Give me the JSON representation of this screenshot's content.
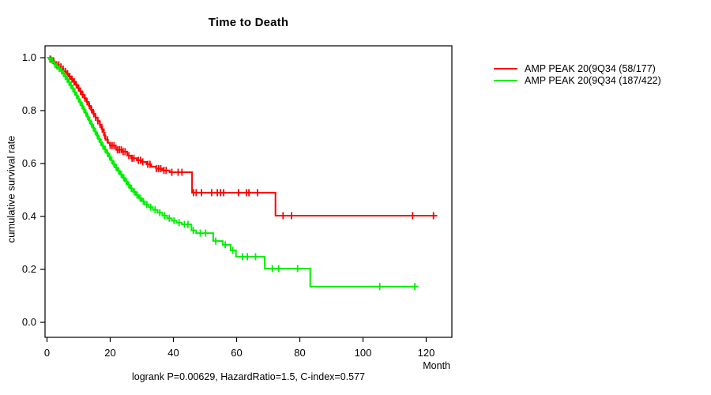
{
  "title": "Time to Death",
  "axes": {
    "x": {
      "label": "Month",
      "tick_values": [
        0,
        20,
        40,
        60,
        80,
        100,
        120
      ],
      "tick_labels": [
        "0",
        "20",
        "40",
        "60",
        "80",
        "100",
        "120"
      ],
      "max_shown": 128
    },
    "y": {
      "label": "cumulative survival rate",
      "tick_values": [
        0.0,
        0.2,
        0.4,
        0.6,
        0.8,
        1.0
      ],
      "tick_labels": [
        "0.0",
        "0.2",
        "0.4",
        "0.6",
        "0.8",
        "1.0"
      ]
    }
  },
  "legend": [
    {
      "label": "AMP PEAK 20(9Q34 (58/177)",
      "color": "#ff0000"
    },
    {
      "label": "AMP PEAK 20(9Q34 (187/422)",
      "color": "#00ee00"
    }
  ],
  "footer": "logrank P=0.00629, HazardRatio=1.5, C-index=0.577",
  "chart_data": {
    "type": "line",
    "subtype": "kaplan-meier-step",
    "title": "Time to Death",
    "xlabel": "Month",
    "ylabel": "cumulative survival rate",
    "xlim": [
      0,
      128
    ],
    "ylim": [
      0.0,
      1.0
    ],
    "stats": {
      "logrank_p": 0.00629,
      "hazard_ratio": 1.5,
      "c_index": 0.577
    },
    "series": [
      {
        "name": "AMP PEAK 20(9Q34 (58/177)",
        "events": 58,
        "n": 177,
        "color": "#ff0000",
        "end_time": 123.5,
        "steps": [
          [
            0,
            1.0
          ],
          [
            0.8,
            0.994
          ],
          [
            1.5,
            0.988
          ],
          [
            2.2,
            0.981
          ],
          [
            3.0,
            0.973
          ],
          [
            3.8,
            0.965
          ],
          [
            4.5,
            0.957
          ],
          [
            5.2,
            0.948
          ],
          [
            6.0,
            0.939
          ],
          [
            6.8,
            0.929
          ],
          [
            7.5,
            0.919
          ],
          [
            8.2,
            0.909
          ],
          [
            9.0,
            0.897
          ],
          [
            9.7,
            0.885
          ],
          [
            10.4,
            0.873
          ],
          [
            11.1,
            0.86
          ],
          [
            11.8,
            0.847
          ],
          [
            12.5,
            0.833
          ],
          [
            13.2,
            0.818
          ],
          [
            13.9,
            0.803
          ],
          [
            14.6,
            0.788
          ],
          [
            15.3,
            0.774
          ],
          [
            16.0,
            0.761
          ],
          [
            16.7,
            0.747
          ],
          [
            17.3,
            0.73
          ],
          [
            18.0,
            0.706
          ],
          [
            18.5,
            0.69
          ],
          [
            19.3,
            0.678
          ],
          [
            19.9,
            0.668
          ],
          [
            21.8,
            0.652
          ],
          [
            24.0,
            0.645
          ],
          [
            25.4,
            0.63
          ],
          [
            26.6,
            0.62
          ],
          [
            28.4,
            0.612
          ],
          [
            30.0,
            0.606
          ],
          [
            31.5,
            0.597
          ],
          [
            33.0,
            0.588
          ],
          [
            34.5,
            0.581
          ],
          [
            36.5,
            0.574
          ],
          [
            38.8,
            0.567
          ],
          [
            45.9,
            0.49
          ],
          [
            72.3,
            0.403
          ]
        ],
        "censor_times": [
          1.2,
          2.1,
          3.0,
          3.7,
          4.4,
          5.1,
          5.8,
          6.5,
          7.2,
          7.9,
          8.6,
          9.3,
          10.0,
          10.6,
          11.3,
          12.0,
          12.7,
          13.4,
          14.1,
          14.8,
          15.4,
          16.1,
          16.8,
          17.5,
          18.3,
          19.1,
          20.0,
          20.6,
          21.2,
          22.3,
          22.9,
          23.5,
          24.1,
          24.7,
          25.9,
          26.9,
          27.5,
          28.9,
          29.6,
          30.3,
          31.9,
          32.6,
          34.6,
          35.3,
          36.0,
          37.0,
          37.7,
          39.5,
          41.5,
          42.7,
          46.4,
          47.2,
          48.9,
          52.1,
          53.9,
          54.9,
          55.9,
          60.6,
          63.1,
          63.9,
          66.6,
          74.7,
          77.4,
          115.7,
          122.3
        ]
      },
      {
        "name": "AMP PEAK 20(9Q34 (187/422)",
        "events": 187,
        "n": 422,
        "color": "#00ee00",
        "end_time": 117.5,
        "steps": [
          [
            0,
            1.0
          ],
          [
            0.6,
            0.995
          ],
          [
            1.2,
            0.989
          ],
          [
            1.8,
            0.982
          ],
          [
            2.4,
            0.975
          ],
          [
            3.0,
            0.967
          ],
          [
            3.6,
            0.959
          ],
          [
            4.2,
            0.95
          ],
          [
            4.8,
            0.94
          ],
          [
            5.4,
            0.93
          ],
          [
            6.0,
            0.919
          ],
          [
            6.6,
            0.908
          ],
          [
            7.2,
            0.896
          ],
          [
            7.8,
            0.884
          ],
          [
            8.4,
            0.871
          ],
          [
            9.0,
            0.858
          ],
          [
            9.6,
            0.845
          ],
          [
            10.2,
            0.832
          ],
          [
            10.8,
            0.819
          ],
          [
            11.4,
            0.805
          ],
          [
            12.0,
            0.791
          ],
          [
            12.6,
            0.777
          ],
          [
            13.2,
            0.763
          ],
          [
            13.8,
            0.749
          ],
          [
            14.4,
            0.735
          ],
          [
            15.0,
            0.721
          ],
          [
            15.6,
            0.707
          ],
          [
            16.2,
            0.693
          ],
          [
            16.8,
            0.68
          ],
          [
            17.4,
            0.667
          ],
          [
            18.0,
            0.654
          ],
          [
            18.7,
            0.64
          ],
          [
            19.4,
            0.626
          ],
          [
            20.1,
            0.612
          ],
          [
            20.8,
            0.598
          ],
          [
            21.5,
            0.585
          ],
          [
            22.3,
            0.572
          ],
          [
            23.1,
            0.559
          ],
          [
            23.9,
            0.546
          ],
          [
            24.7,
            0.532
          ],
          [
            25.5,
            0.519
          ],
          [
            26.3,
            0.506
          ],
          [
            27.2,
            0.493
          ],
          [
            28.1,
            0.481
          ],
          [
            29.0,
            0.469
          ],
          [
            30.0,
            0.457
          ],
          [
            31.0,
            0.445
          ],
          [
            32.2,
            0.435
          ],
          [
            33.5,
            0.425
          ],
          [
            35.0,
            0.414
          ],
          [
            36.5,
            0.403
          ],
          [
            38.0,
            0.393
          ],
          [
            39.5,
            0.384
          ],
          [
            41.0,
            0.377
          ],
          [
            42.7,
            0.37
          ],
          [
            45.7,
            0.347
          ],
          [
            47.2,
            0.337
          ],
          [
            52.6,
            0.307
          ],
          [
            55.6,
            0.293
          ],
          [
            58.1,
            0.272
          ],
          [
            59.8,
            0.248
          ],
          [
            68.9,
            0.203
          ],
          [
            83.3,
            0.135
          ]
        ],
        "censor_times": [
          0.9,
          1.7,
          2.5,
          3.2,
          3.9,
          4.6,
          5.2,
          5.8,
          6.4,
          7.0,
          7.6,
          8.2,
          8.8,
          9.4,
          10.0,
          10.5,
          11.1,
          11.7,
          12.3,
          12.9,
          13.5,
          14.1,
          14.7,
          15.3,
          15.9,
          16.5,
          17.1,
          17.7,
          18.4,
          19.1,
          19.8,
          20.5,
          21.2,
          21.9,
          22.7,
          23.5,
          24.3,
          25.1,
          25.9,
          26.7,
          27.6,
          28.5,
          29.5,
          30.5,
          31.6,
          32.8,
          34.2,
          35.7,
          37.2,
          38.7,
          40.2,
          41.8,
          43.5,
          44.6,
          46.3,
          48.5,
          50.2,
          53.4,
          56.4,
          58.8,
          61.9,
          63.4,
          66.0,
          71.3,
          73.3,
          79.3,
          105.3,
          116.4
        ]
      }
    ]
  }
}
